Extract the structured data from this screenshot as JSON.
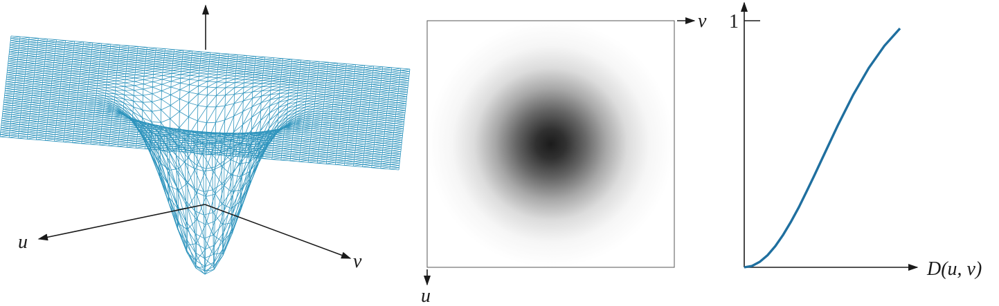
{
  "colors": {
    "mesh": "#2e94bd",
    "curve": "#1f6f9f",
    "axis": "#1a1a1a",
    "frame": "#555555"
  },
  "surface_panel": {
    "axis_u_label": "u",
    "axis_v_label": "v"
  },
  "image_panel": {
    "axis_v_label": "v",
    "axis_u_label": "u"
  },
  "profile_panel": {
    "y_tick_label": "1",
    "x_axis_label": "D(u, v)"
  },
  "chart_data": {
    "type": "line",
    "title": "",
    "xlabel": "D(u, v)",
    "ylabel": "",
    "ylim": [
      0,
      1
    ],
    "yticks": [
      1
    ],
    "series": [
      {
        "x": [
          0,
          0.1,
          0.2,
          0.3,
          0.4,
          0.5,
          0.6,
          0.7,
          0.8,
          0.9,
          1.0,
          1.2,
          1.4,
          1.6,
          1.8,
          2.0
        ],
        "values": [
          0,
          0.005,
          0.02,
          0.044,
          0.077,
          0.118,
          0.165,
          0.217,
          0.274,
          0.333,
          0.393,
          0.513,
          0.625,
          0.722,
          0.802,
          0.865
        ]
      }
    ]
  }
}
